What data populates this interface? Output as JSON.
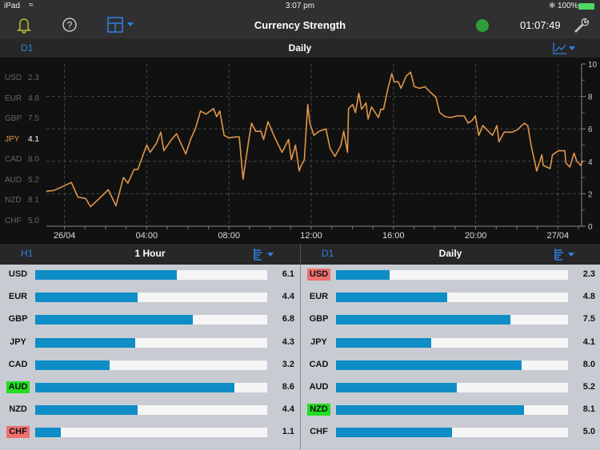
{
  "status_bar": {
    "device": "iPad",
    "time": "3:07 pm",
    "battery": "100%"
  },
  "toolbar": {
    "title": "Currency Strength",
    "clock": "01:07:49",
    "connection_color": "#2e9e3a",
    "icons": [
      "bell-icon",
      "help-icon",
      "layout-icon",
      "wrench-icon"
    ]
  },
  "chart_header": {
    "code": "D1",
    "label": "Daily"
  },
  "legend": [
    {
      "currency": "USD",
      "value": "2.3"
    },
    {
      "currency": "EUR",
      "value": "4.8"
    },
    {
      "currency": "GBP",
      "value": "7.5"
    },
    {
      "currency": "JPY",
      "value": "4.1",
      "selected": true
    },
    {
      "currency": "CAD",
      "value": "8.0"
    },
    {
      "currency": "AUD",
      "value": "5.2"
    },
    {
      "currency": "NZD",
      "value": "8.1"
    },
    {
      "currency": "CHF",
      "value": "5.0"
    }
  ],
  "chart_data": {
    "type": "line",
    "series": [
      {
        "color": "#e0964a",
        "points": [
          [
            "25/04 23:07",
            2.16
          ],
          [
            "25/04 23:29",
            2.2
          ],
          [
            "26/04 00:00",
            2.5
          ],
          [
            "26/04 00:20",
            2.7
          ],
          [
            "26/04 00:39",
            1.8
          ],
          [
            "26/04 01:02",
            1.7
          ],
          [
            "26/04 01:16",
            1.2
          ],
          [
            "26/04 01:41",
            1.7
          ],
          [
            "26/04 02:08",
            2.25
          ],
          [
            "26/04 02:30",
            1.26
          ],
          [
            "26/04 02:52",
            3.0
          ],
          [
            "26/04 03:05",
            2.65
          ],
          [
            "26/04 03:23",
            3.5
          ],
          [
            "26/04 03:34",
            3.5
          ],
          [
            "26/04 04:00",
            5.0
          ],
          [
            "26/04 04:10",
            4.55
          ],
          [
            "26/04 04:28",
            5.1
          ],
          [
            "26/04 04:41",
            5.8
          ],
          [
            "26/04 04:50",
            4.65
          ],
          [
            "26/04 05:11",
            5.3
          ],
          [
            "26/04 05:27",
            5.7
          ],
          [
            "26/04 05:54",
            4.45
          ],
          [
            "26/04 06:08",
            5.35
          ],
          [
            "26/04 06:22",
            6.0
          ],
          [
            "26/04 06:37",
            7.1
          ],
          [
            "26/04 06:53",
            6.9
          ],
          [
            "26/04 07:15",
            7.25
          ],
          [
            "26/04 07:24",
            6.75
          ],
          [
            "26/04 07:33",
            7.1
          ],
          [
            "26/04 07:46",
            5.6
          ],
          [
            "26/04 07:59",
            5.45
          ],
          [
            "26/04 08:19",
            5.5
          ],
          [
            "26/04 08:30",
            5.5
          ],
          [
            "26/04 08:41",
            2.9
          ],
          [
            "26/04 08:58",
            5.35
          ],
          [
            "26/04 09:06",
            6.35
          ],
          [
            "26/04 09:18",
            5.85
          ],
          [
            "26/04 09:33",
            5.85
          ],
          [
            "26/04 09:41",
            5.35
          ],
          [
            "26/04 09:54",
            6.45
          ],
          [
            "26/04 10:16",
            5.35
          ],
          [
            "26/04 10:35",
            4.55
          ],
          [
            "26/04 10:54",
            5.35
          ],
          [
            "26/04 11:02",
            4.1
          ],
          [
            "26/04 11:14",
            5.0
          ],
          [
            "26/04 11:25",
            3.4
          ],
          [
            "26/04 11:29",
            3.65
          ],
          [
            "26/04 11:40",
            4.1
          ],
          [
            "26/04 11:50",
            7.5
          ],
          [
            "26/04 11:56",
            6.35
          ],
          [
            "26/04 12:08",
            5.6
          ],
          [
            "26/04 12:23",
            5.85
          ],
          [
            "26/04 12:43",
            6.0
          ],
          [
            "26/04 12:55",
            4.8
          ],
          [
            "26/04 13:09",
            4.3
          ],
          [
            "26/04 13:26",
            4.95
          ],
          [
            "26/04 13:35",
            5.85
          ],
          [
            "26/04 13:46",
            4.55
          ],
          [
            "26/04 13:49",
            7.25
          ],
          [
            "26/04 14:01",
            7.5
          ],
          [
            "26/04 14:09",
            7.0
          ],
          [
            "26/04 14:19",
            8.2
          ],
          [
            "26/04 14:27",
            7.2
          ],
          [
            "26/04 14:40",
            7.6
          ],
          [
            "26/04 14:46",
            6.6
          ],
          [
            "26/04 14:56",
            7.35
          ],
          [
            "26/04 15:16",
            6.7
          ],
          [
            "26/04 15:23",
            7.2
          ],
          [
            "26/04 15:31",
            7.2
          ],
          [
            "26/04 15:43",
            8.4
          ],
          [
            "26/04 15:55",
            9.4
          ],
          [
            "26/04 16:02",
            8.9
          ],
          [
            "26/04 16:14",
            8.9
          ],
          [
            "26/04 16:22",
            8.5
          ],
          [
            "26/04 16:37",
            9.25
          ],
          [
            "26/04 16:50",
            9.5
          ],
          [
            "26/04 17:01",
            8.6
          ],
          [
            "26/04 17:16",
            8.5
          ],
          [
            "26/04 17:32",
            8.6
          ],
          [
            "26/04 17:48",
            8.25
          ],
          [
            "26/04 18:04",
            7.95
          ],
          [
            "26/04 18:15",
            7.0
          ],
          [
            "26/04 18:31",
            6.75
          ],
          [
            "26/04 18:47",
            6.7
          ],
          [
            "26/04 19:06",
            6.8
          ],
          [
            "26/04 19:26",
            6.8
          ],
          [
            "26/04 19:38",
            6.35
          ],
          [
            "26/04 19:49",
            6.5
          ],
          [
            "26/04 19:59",
            6.8
          ],
          [
            "26/04 20:09",
            5.6
          ],
          [
            "26/04 20:21",
            6.2
          ],
          [
            "26/04 20:37",
            5.85
          ],
          [
            "26/04 20:49",
            5.6
          ],
          [
            "26/04 21:02",
            6.2
          ],
          [
            "26/04 21:08",
            5.2
          ],
          [
            "26/04 21:23",
            5.8
          ],
          [
            "26/04 21:47",
            5.8
          ],
          [
            "26/04 22:02",
            5.95
          ],
          [
            "26/04 22:22",
            6.35
          ],
          [
            "26/04 22:32",
            6.2
          ],
          [
            "26/04 22:42",
            4.95
          ],
          [
            "26/04 22:58",
            3.4
          ],
          [
            "26/04 23:13",
            4.4
          ],
          [
            "26/04 23:17",
            3.75
          ],
          [
            "26/04 23:37",
            3.55
          ],
          [
            "26/04 23:44",
            4.4
          ],
          [
            "27/04 00:02",
            4.65
          ],
          [
            "27/04 00:20",
            4.65
          ],
          [
            "27/04 00:23",
            3.9
          ],
          [
            "27/04 00:35",
            3.65
          ],
          [
            "27/04 00:47",
            4.5
          ],
          [
            "27/04 00:55",
            4.0
          ],
          [
            "27/04 01:07",
            3.75
          ],
          [
            "27/04 01:12",
            4.05
          ]
        ]
      }
    ],
    "x_ticks": [
      "26/04",
      "04:00",
      "08:00",
      "12:00",
      "16:00",
      "20:00",
      "27/04"
    ],
    "y_ticks": [
      "0",
      "2",
      "4",
      "6",
      "8",
      "10"
    ],
    "ylim": [
      0,
      10
    ],
    "grid": true
  },
  "panels": [
    {
      "code": "H1",
      "label": "1 Hour",
      "rows": [
        {
          "currency": "USD",
          "value": "6.1",
          "fraction": 0.61,
          "highlight": ""
        },
        {
          "currency": "EUR",
          "value": "4.4",
          "fraction": 0.44,
          "highlight": ""
        },
        {
          "currency": "GBP",
          "value": "6.8",
          "fraction": 0.68,
          "highlight": ""
        },
        {
          "currency": "JPY",
          "value": "4.3",
          "fraction": 0.43,
          "highlight": ""
        },
        {
          "currency": "CAD",
          "value": "3.2",
          "fraction": 0.32,
          "highlight": ""
        },
        {
          "currency": "AUD",
          "value": "8.6",
          "fraction": 0.86,
          "highlight": "#22dd22"
        },
        {
          "currency": "NZD",
          "value": "4.4",
          "fraction": 0.44,
          "highlight": ""
        },
        {
          "currency": "CHF",
          "value": "1.1",
          "fraction": 0.11,
          "highlight": "#f07070"
        }
      ]
    },
    {
      "code": "D1",
      "label": "Daily",
      "rows": [
        {
          "currency": "USD",
          "value": "2.3",
          "fraction": 0.23,
          "highlight": "#f07070"
        },
        {
          "currency": "EUR",
          "value": "4.8",
          "fraction": 0.48,
          "highlight": ""
        },
        {
          "currency": "GBP",
          "value": "7.5",
          "fraction": 0.75,
          "highlight": ""
        },
        {
          "currency": "JPY",
          "value": "4.1",
          "fraction": 0.41,
          "highlight": ""
        },
        {
          "currency": "CAD",
          "value": "8.0",
          "fraction": 0.8,
          "highlight": ""
        },
        {
          "currency": "AUD",
          "value": "5.2",
          "fraction": 0.52,
          "highlight": ""
        },
        {
          "currency": "NZD",
          "value": "8.1",
          "fraction": 0.81,
          "highlight": "#22dd22"
        },
        {
          "currency": "CHF",
          "value": "5.0",
          "fraction": 0.5,
          "highlight": ""
        }
      ]
    }
  ]
}
